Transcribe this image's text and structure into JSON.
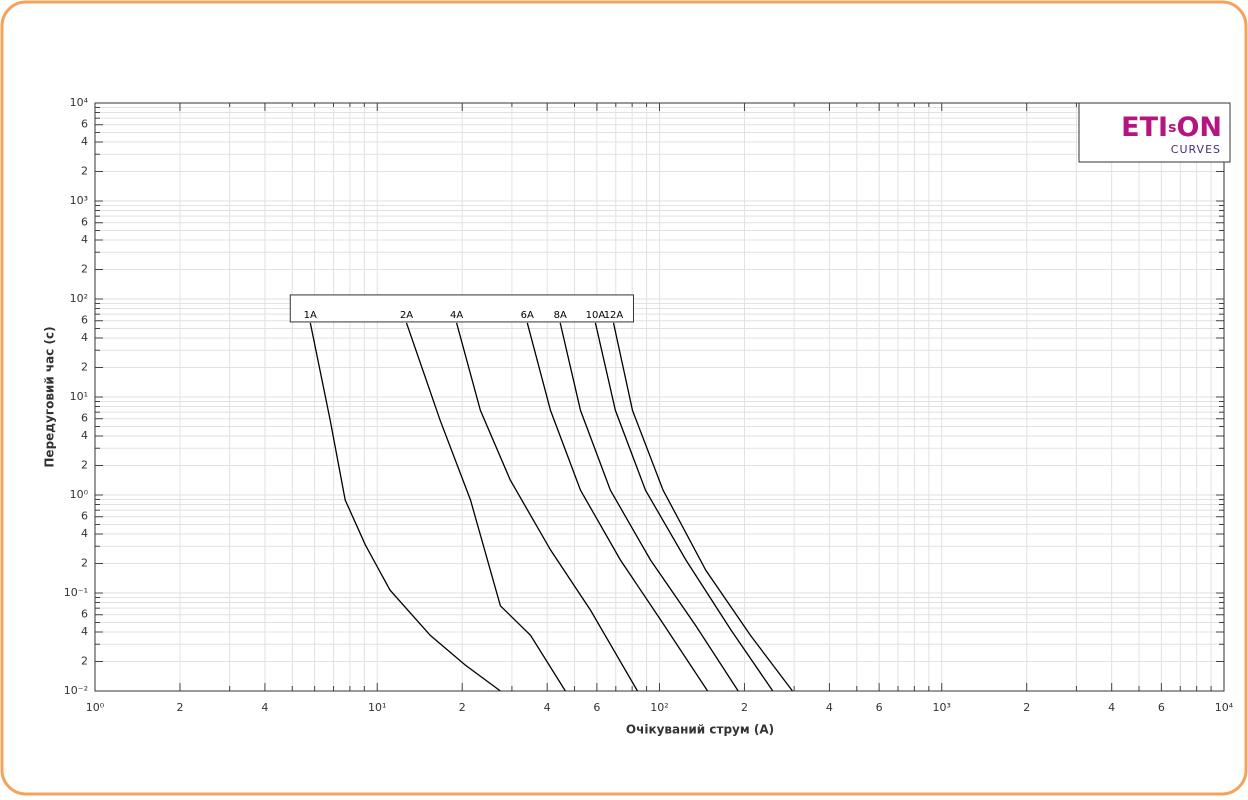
{
  "chart_data": {
    "type": "line",
    "xlabel": "Очікуваний струм (А)",
    "ylabel": "Передуговий час (с)",
    "xscale": "log",
    "yscale": "log",
    "grid": true,
    "xlim": [
      1,
      10000
    ],
    "ylim": [
      0.01,
      10000
    ],
    "xticks": [
      {
        "value": 1,
        "label": "10⁰"
      },
      2,
      4,
      {
        "value": 10,
        "label": "10¹"
      },
      {
        "value": 20,
        "label": "2"
      },
      {
        "value": 40,
        "label": "4"
      },
      {
        "value": 60,
        "label": "6"
      },
      {
        "value": 100,
        "label": "10²"
      },
      {
        "value": 200,
        "label": "2"
      },
      {
        "value": 400,
        "label": "4"
      },
      {
        "value": 600,
        "label": "6"
      },
      {
        "value": 1000,
        "label": "10³"
      },
      {
        "value": 2000,
        "label": "2"
      },
      {
        "value": 4000,
        "label": "4"
      },
      {
        "value": 6000,
        "label": "6"
      },
      {
        "value": 10000,
        "label": "10⁴"
      }
    ],
    "x_minor_ticks": [
      3,
      5,
      6,
      7,
      8,
      9,
      30,
      50,
      70,
      80,
      90,
      300,
      500,
      700,
      800,
      900,
      3000,
      5000,
      7000,
      8000,
      9000
    ],
    "yticks": [
      {
        "value": 0.01,
        "label": "10⁻²"
      },
      {
        "value": 0.02,
        "label": "2"
      },
      {
        "value": 0.04,
        "label": "4"
      },
      {
        "value": 0.06,
        "label": "6"
      },
      {
        "value": 0.1,
        "label": "10⁻¹"
      },
      {
        "value": 0.2,
        "label": "2"
      },
      {
        "value": 0.4,
        "label": "4"
      },
      {
        "value": 0.6,
        "label": "6"
      },
      {
        "value": 1,
        "label": "10⁰"
      },
      2,
      4,
      6,
      {
        "value": 10,
        "label": "10¹"
      },
      {
        "value": 20,
        "label": "2"
      },
      {
        "value": 40,
        "label": "4"
      },
      {
        "value": 60,
        "label": "6"
      },
      {
        "value": 100,
        "label": "10²"
      },
      {
        "value": 200,
        "label": "2"
      },
      {
        "value": 400,
        "label": "4"
      },
      {
        "value": 600,
        "label": "6"
      },
      {
        "value": 1000,
        "label": "10³"
      },
      {
        "value": 2000,
        "label": "2"
      },
      {
        "value": 4000,
        "label": "4"
      },
      {
        "value": 6000,
        "label": "6"
      },
      {
        "value": 10000,
        "label": "10⁴"
      }
    ],
    "y_minor_ticks": [
      0.03,
      0.05,
      0.07,
      0.08,
      0.09,
      0.3,
      0.5,
      0.7,
      0.8,
      0.9,
      3,
      5,
      7,
      8,
      9,
      30,
      50,
      70,
      80,
      90,
      300,
      500,
      700,
      800,
      900,
      3000,
      5000,
      7000,
      8000,
      9000
    ],
    "series": [
      {
        "name": "1A",
        "color": "#000000",
        "x": [
          5.79,
          6.81,
          7.7,
          9.07,
          11.1,
          15.4,
          20.5,
          27.3
        ],
        "values": [
          57,
          5.8,
          0.89,
          0.31,
          0.107,
          0.037,
          0.0184,
          0.01
        ]
      },
      {
        "name": "2A",
        "color": "#000000",
        "x": [
          12.7,
          16.7,
          21.4,
          27.3,
          34.9,
          46.4
        ],
        "values": [
          57,
          5.8,
          0.89,
          0.074,
          0.037,
          0.01
        ]
      },
      {
        "name": "4A",
        "color": "#000000",
        "x": [
          19.1,
          23.2,
          29.6,
          41.1,
          56.9,
          83.6
        ],
        "values": [
          57,
          7.3,
          1.42,
          0.275,
          0.067,
          0.01
        ]
      },
      {
        "name": "6A",
        "color": "#000000",
        "x": [
          34,
          41.1,
          52.5,
          72.7,
          101,
          148
        ],
        "values": [
          57,
          7.3,
          1.12,
          0.217,
          0.053,
          0.01
        ]
      },
      {
        "name": "8A",
        "color": "#000000",
        "x": [
          44.5,
          52.5,
          67,
          92.9,
          134,
          190
        ],
        "values": [
          57,
          7.3,
          1.12,
          0.217,
          0.047,
          0.01
        ]
      },
      {
        "name": "10A",
        "color": "#000000",
        "x": [
          59.3,
          69.8,
          89.2,
          124,
          179,
          252
        ],
        "values": [
          57,
          7.3,
          1.12,
          0.217,
          0.042,
          0.01
        ]
      },
      {
        "name": "12A",
        "color": "#000000",
        "x": [
          68.7,
          80.2,
          103,
          146,
          210,
          296
        ],
        "values": [
          57,
          7.3,
          1.12,
          0.17,
          0.037,
          0.01
        ]
      }
    ]
  },
  "logo": {
    "parts": [
      "ETI",
      "s",
      "ON"
    ],
    "subtitle": "CURVES"
  }
}
